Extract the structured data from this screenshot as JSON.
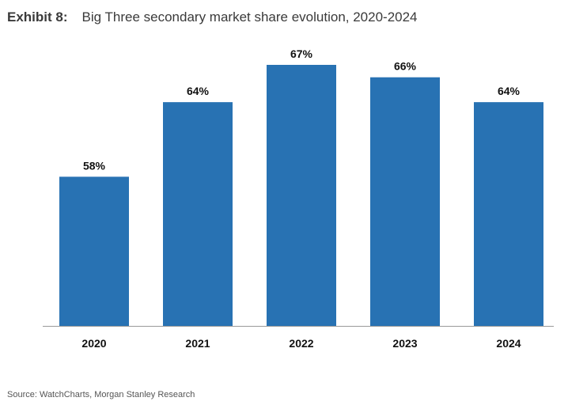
{
  "header": {
    "exhibit": "Exhibit 8:",
    "title": "Big Three secondary market share evolution, 2020-2024"
  },
  "footer": {
    "source": "Source: WatchCharts, Morgan Stanley Research"
  },
  "chart_data": {
    "type": "bar",
    "title": "Big Three secondary market share evolution, 2020-2024",
    "categories": [
      "2020",
      "2021",
      "2022",
      "2023",
      "2024"
    ],
    "values": [
      58,
      64,
      67,
      66,
      64
    ],
    "data_labels": [
      "58%",
      "64%",
      "67%",
      "66%",
      "64%"
    ],
    "xlabel": "",
    "ylabel": "",
    "ylim": [
      46,
      67
    ],
    "grid": false,
    "legend": "none",
    "bar_color": "#2872b3"
  }
}
